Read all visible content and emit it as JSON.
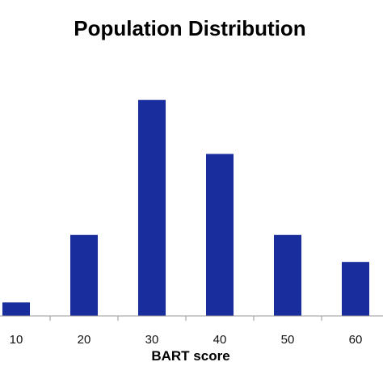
{
  "chart_data": {
    "type": "bar",
    "title": "Population Distribution",
    "xlabel": "BART score",
    "ylabel": "",
    "categories": [
      "10",
      "20",
      "30",
      "40",
      "50",
      "60"
    ],
    "values": [
      0.5,
      3,
      8,
      6,
      3,
      2
    ],
    "ylim": [
      0,
      8.5
    ],
    "grid": false,
    "legend": "none",
    "bar_color": "#1a2d9c",
    "axis_color": "#9a9a9a"
  }
}
